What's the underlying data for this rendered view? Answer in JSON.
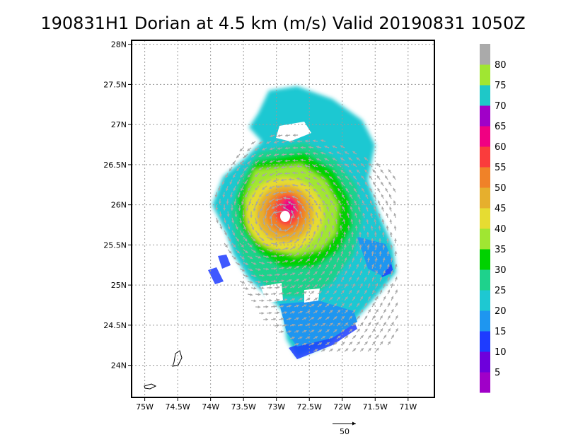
{
  "title": "190831H1 Dorian at 4.5 km (m/s) Valid 20190831  1050Z",
  "map": {
    "lon_range": [
      -75.2,
      -70.6
    ],
    "lat_range": [
      23.6,
      28.05
    ],
    "lon_ticks": [
      {
        "value": -75,
        "label": "75W"
      },
      {
        "value": -74.5,
        "label": "74.5W"
      },
      {
        "value": -74,
        "label": "74W"
      },
      {
        "value": -73.5,
        "label": "73.5W"
      },
      {
        "value": -73,
        "label": "73W"
      },
      {
        "value": -72.5,
        "label": "72.5W"
      },
      {
        "value": -72,
        "label": "72W"
      },
      {
        "value": -71.5,
        "label": "71.5W"
      },
      {
        "value": -71,
        "label": "71W"
      }
    ],
    "lat_ticks": [
      {
        "value": 24,
        "label": "24N"
      },
      {
        "value": 24.5,
        "label": "24.5N"
      },
      {
        "value": 25,
        "label": "25N"
      },
      {
        "value": 25.5,
        "label": "25.5N"
      },
      {
        "value": 26,
        "label": "26N"
      },
      {
        "value": 26.5,
        "label": "26.5N"
      },
      {
        "value": 27,
        "label": "27N"
      },
      {
        "value": 27.5,
        "label": "27.5N"
      },
      {
        "value": 28,
        "label": "28N"
      }
    ],
    "storm_center": {
      "lon": -72.92,
      "lat": 25.82
    },
    "grid": true
  },
  "colorbar": {
    "levels": [
      5,
      10,
      15,
      20,
      25,
      30,
      35,
      40,
      45,
      50,
      55,
      60,
      65,
      70,
      75,
      80
    ],
    "colors": [
      "#a000c8",
      "#6e00dc",
      "#1e3cff",
      "#1e96f0",
      "#1ec8d2",
      "#1ed28c",
      "#00d200",
      "#a0e632",
      "#e6dc32",
      "#e6af2d",
      "#f08228",
      "#fa3c3c",
      "#f00082",
      "#a000c8",
      "#1ec8c8",
      "#a0e632",
      "#aaaaaa"
    ]
  },
  "reference_vector": {
    "label": "50"
  }
}
